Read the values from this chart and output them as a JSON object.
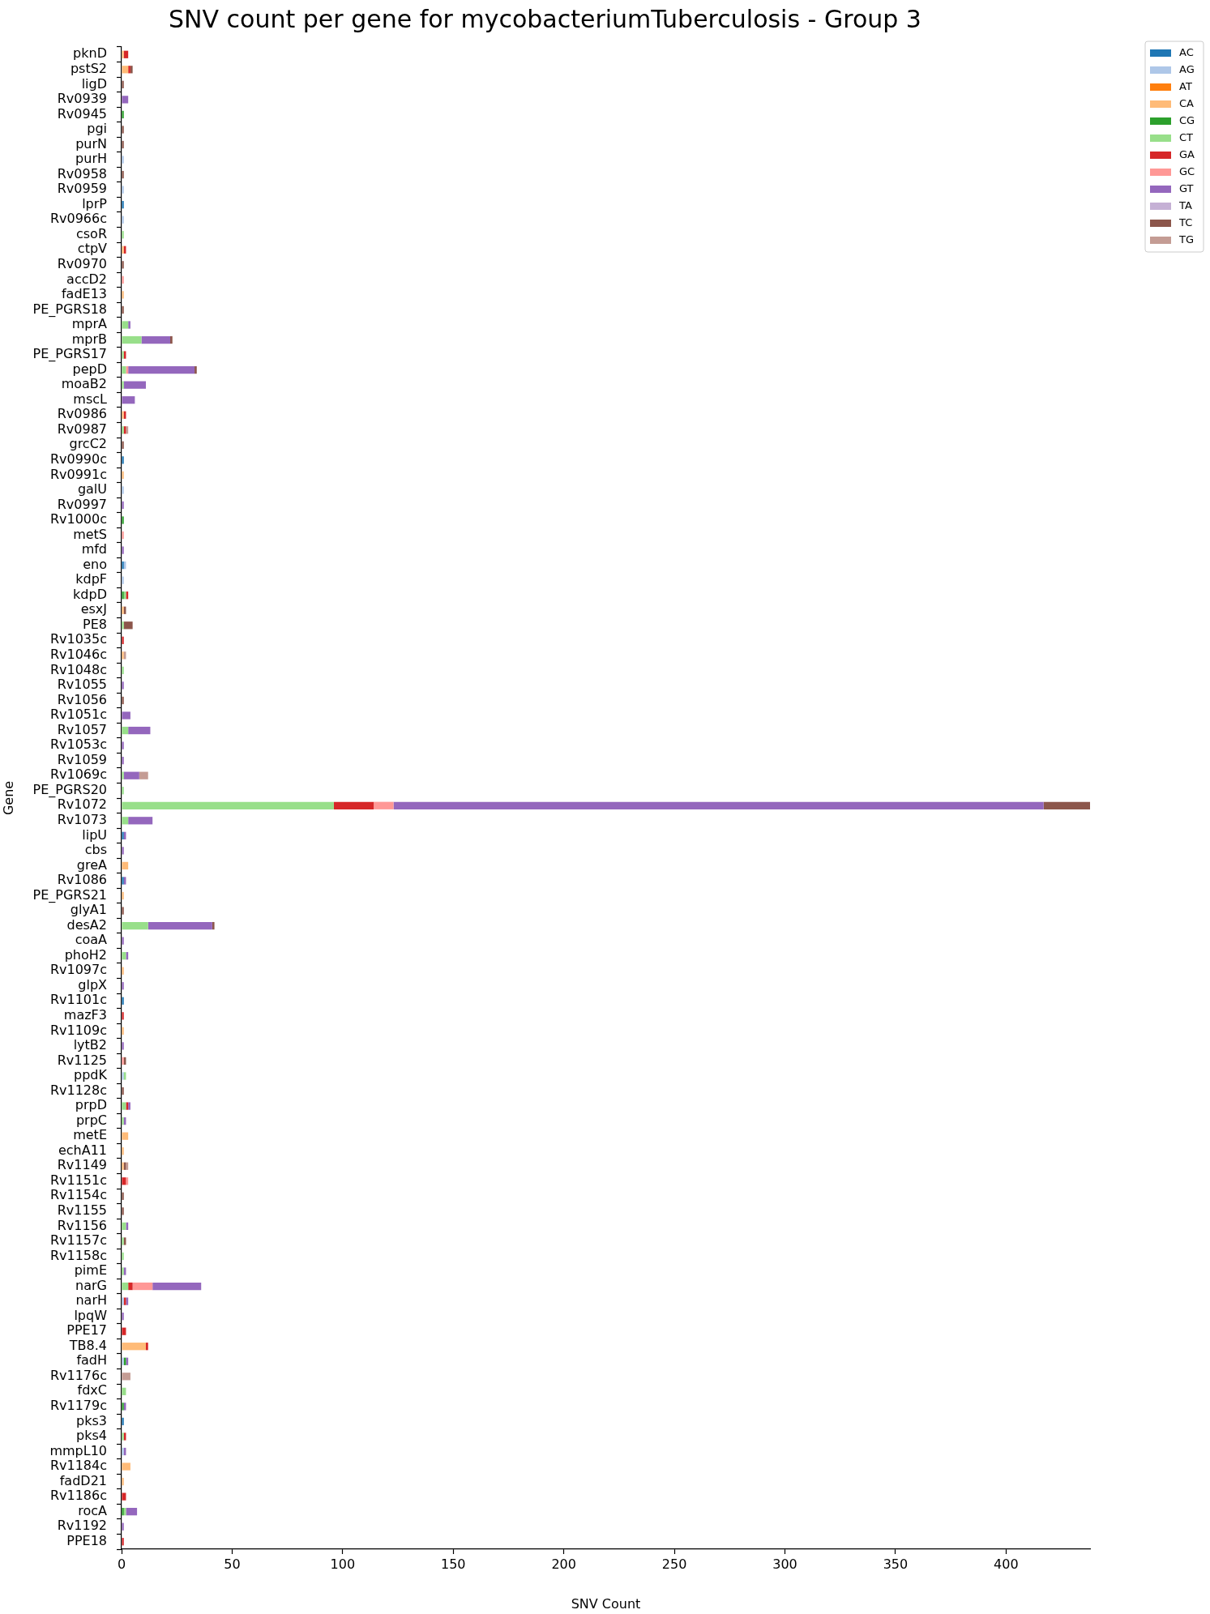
{
  "chart_data": {
    "type": "bar",
    "orientation": "horizontal",
    "stacked": true,
    "title": "SNV count per gene for mycobacteriumTuberculosis - Group 3",
    "xlabel": "SNV Count",
    "ylabel": "Gene",
    "categories": [
      "pknD",
      "pstS2",
      "ligD",
      "Rv0939",
      "Rv0945",
      "pgi",
      "purN",
      "purH",
      "Rv0958",
      "Rv0959",
      "lprP",
      "Rv0966c",
      "csoR",
      "ctpV",
      "Rv0970",
      "accD2",
      "fadE13",
      "PE_PGRS18",
      "mprA",
      "mprB",
      "PE_PGRS17",
      "pepD",
      "moaB2",
      "mscL",
      "Rv0986",
      "Rv0987",
      "grcC2",
      "Rv0990c",
      "Rv0991c",
      "galU",
      "Rv0997",
      "Rv1000c",
      "metS",
      "mfd",
      "eno",
      "kdpF",
      "kdpD",
      "esxJ",
      "PE8",
      "Rv1035c",
      "Rv1046c",
      "Rv1048c",
      "Rv1055",
      "Rv1056",
      "Rv1051c",
      "Rv1057",
      "Rv1053c",
      "Rv1059",
      "Rv1069c",
      "PE_PGRS20",
      "Rv1072",
      "Rv1073",
      "lipU",
      "cbs",
      "greA",
      "Rv1086",
      "PE_PGRS21",
      "glyA1",
      "desA2",
      "coaA",
      "phoH2",
      "Rv1097c",
      "glpX",
      "Rv1101c",
      "mazF3",
      "Rv1109c",
      "lytB2",
      "Rv1125",
      "ppdK",
      "Rv1128c",
      "prpD",
      "prpC",
      "metE",
      "echA11",
      "Rv1149",
      "Rv1151c",
      "Rv1154c",
      "Rv1155",
      "Rv1156",
      "Rv1157c",
      "Rv1158c",
      "pimE",
      "narG",
      "narH",
      "lpqW",
      "PPE17",
      "TB8.4",
      "fadH",
      "Rv1176c",
      "fdxC",
      "Rv1179c",
      "pks3",
      "pks4",
      "mmpL10",
      "Rv1184c",
      "fadD21",
      "Rv1186c",
      "rocA",
      "Rv1192",
      "PPE18"
    ],
    "series": [
      {
        "name": "AC",
        "color": "#1f77b4",
        "values": [
          null,
          null,
          null,
          null,
          null,
          null,
          null,
          null,
          null,
          null,
          1,
          null,
          null,
          null,
          null,
          null,
          null,
          null,
          null,
          null,
          null,
          null,
          null,
          null,
          null,
          null,
          null,
          1,
          null,
          null,
          null,
          null,
          null,
          null,
          1,
          null,
          null,
          null,
          null,
          null,
          null,
          null,
          null,
          null,
          null,
          null,
          null,
          null,
          null,
          null,
          null,
          null,
          1,
          null,
          null,
          1,
          null,
          null,
          null,
          null,
          null,
          null,
          null,
          1,
          null,
          null,
          null,
          null,
          null,
          null,
          null,
          null,
          null,
          null,
          null,
          null,
          null,
          null,
          null,
          null,
          null,
          null,
          null,
          null,
          null,
          null,
          null,
          null,
          null,
          null,
          null,
          1,
          null,
          null,
          null,
          null,
          null,
          null,
          null,
          null
        ]
      },
      {
        "name": "AG",
        "color": "#aec7e8",
        "values": [
          null,
          null,
          null,
          null,
          null,
          null,
          null,
          1,
          null,
          1,
          null,
          1,
          null,
          null,
          null,
          null,
          null,
          null,
          null,
          null,
          null,
          null,
          null,
          null,
          null,
          null,
          null,
          null,
          null,
          1,
          null,
          null,
          null,
          null,
          1,
          1,
          null,
          null,
          null,
          null,
          null,
          null,
          null,
          null,
          null,
          null,
          null,
          null,
          null,
          null,
          null,
          null,
          null,
          null,
          null,
          null,
          null,
          null,
          null,
          null,
          null,
          null,
          null,
          null,
          null,
          null,
          null,
          null,
          1,
          null,
          null,
          null,
          null,
          null,
          null,
          null,
          null,
          null,
          null,
          null,
          null,
          null,
          null,
          1,
          null,
          null,
          null,
          1,
          null,
          null,
          null,
          null,
          null,
          1,
          null,
          null,
          null,
          null,
          null,
          null
        ]
      },
      {
        "name": "AT",
        "color": "#ff7f0e",
        "values": [
          null,
          null,
          null,
          null,
          null,
          null,
          null,
          null,
          null,
          null,
          null,
          null,
          null,
          null,
          null,
          null,
          null,
          null,
          null,
          null,
          null,
          null,
          null,
          null,
          null,
          null,
          null,
          null,
          null,
          null,
          null,
          null,
          null,
          null,
          null,
          null,
          null,
          null,
          null,
          null,
          null,
          null,
          null,
          null,
          null,
          null,
          null,
          null,
          null,
          null,
          null,
          null,
          null,
          null,
          null,
          null,
          null,
          null,
          null,
          null,
          null,
          null,
          null,
          null,
          null,
          null,
          null,
          null,
          null,
          null,
          null,
          null,
          null,
          null,
          null,
          null,
          null,
          null,
          null,
          null,
          null,
          null,
          null,
          null,
          null,
          null,
          null,
          null,
          null,
          null,
          null,
          null,
          null,
          null,
          null,
          null,
          null,
          null,
          null,
          null
        ]
      },
      {
        "name": "CA",
        "color": "#ffbb78",
        "values": [
          1,
          3,
          null,
          null,
          null,
          null,
          null,
          null,
          null,
          null,
          null,
          null,
          null,
          1,
          null,
          null,
          1,
          null,
          null,
          null,
          null,
          null,
          null,
          null,
          1,
          null,
          null,
          null,
          1,
          null,
          null,
          null,
          null,
          null,
          null,
          null,
          null,
          1,
          null,
          null,
          1,
          null,
          null,
          null,
          null,
          null,
          null,
          null,
          null,
          null,
          null,
          null,
          null,
          null,
          3,
          null,
          1,
          null,
          null,
          null,
          null,
          1,
          null,
          null,
          null,
          1,
          null,
          null,
          null,
          null,
          null,
          null,
          3,
          1,
          1,
          null,
          null,
          null,
          null,
          null,
          null,
          null,
          null,
          null,
          null,
          null,
          11,
          null,
          null,
          null,
          null,
          null,
          null,
          null,
          4,
          1,
          null,
          null,
          null,
          null
        ]
      },
      {
        "name": "CG",
        "color": "#2ca02c",
        "values": [
          null,
          null,
          null,
          null,
          1,
          null,
          null,
          null,
          null,
          null,
          null,
          null,
          null,
          null,
          null,
          null,
          null,
          null,
          null,
          null,
          null,
          null,
          null,
          null,
          null,
          null,
          null,
          null,
          null,
          null,
          null,
          1,
          null,
          null,
          null,
          null,
          1,
          null,
          null,
          null,
          null,
          null,
          null,
          null,
          null,
          null,
          null,
          null,
          null,
          null,
          null,
          null,
          null,
          null,
          null,
          null,
          null,
          null,
          null,
          null,
          null,
          null,
          null,
          null,
          null,
          null,
          null,
          null,
          null,
          null,
          null,
          null,
          null,
          null,
          null,
          null,
          null,
          null,
          null,
          null,
          null,
          null,
          null,
          null,
          null,
          null,
          null,
          1,
          null,
          null,
          1,
          null,
          null,
          null,
          null,
          null,
          null,
          1,
          null,
          null
        ]
      },
      {
        "name": "CT",
        "color": "#98df8a",
        "values": [
          null,
          null,
          null,
          null,
          null,
          null,
          null,
          null,
          null,
          null,
          null,
          null,
          1,
          null,
          null,
          null,
          null,
          null,
          3,
          9,
          1,
          2,
          1,
          null,
          null,
          1,
          null,
          null,
          null,
          null,
          null,
          null,
          null,
          null,
          null,
          null,
          1,
          null,
          1,
          null,
          null,
          1,
          null,
          null,
          null,
          3,
          null,
          null,
          1,
          1,
          96,
          3,
          null,
          null,
          null,
          null,
          null,
          null,
          12,
          null,
          2,
          null,
          null,
          null,
          null,
          null,
          null,
          null,
          1,
          null,
          2,
          1,
          null,
          null,
          null,
          null,
          null,
          null,
          2,
          1,
          1,
          1,
          3,
          null,
          null,
          null,
          null,
          null,
          null,
          2,
          null,
          null,
          1,
          null,
          null,
          null,
          null,
          1,
          null,
          null
        ]
      },
      {
        "name": "GA",
        "color": "#d62728",
        "values": [
          2,
          1,
          null,
          null,
          null,
          null,
          null,
          null,
          null,
          null,
          null,
          null,
          null,
          1,
          null,
          null,
          null,
          null,
          null,
          null,
          1,
          null,
          null,
          null,
          1,
          1,
          null,
          null,
          null,
          null,
          null,
          null,
          null,
          null,
          null,
          null,
          1,
          null,
          null,
          1,
          null,
          null,
          null,
          null,
          null,
          null,
          null,
          null,
          null,
          null,
          18,
          null,
          null,
          null,
          null,
          null,
          null,
          null,
          null,
          null,
          null,
          null,
          null,
          null,
          1,
          null,
          null,
          null,
          null,
          null,
          1,
          null,
          null,
          null,
          null,
          2,
          null,
          null,
          null,
          null,
          null,
          null,
          2,
          1,
          null,
          2,
          1,
          null,
          null,
          null,
          null,
          null,
          1,
          null,
          null,
          null,
          2,
          null,
          null,
          1
        ]
      },
      {
        "name": "GC",
        "color": "#ff9896",
        "values": [
          null,
          null,
          null,
          null,
          null,
          null,
          null,
          null,
          null,
          null,
          null,
          null,
          null,
          null,
          null,
          1,
          null,
          null,
          null,
          null,
          null,
          1,
          null,
          null,
          null,
          null,
          null,
          null,
          null,
          null,
          null,
          null,
          1,
          null,
          null,
          null,
          null,
          null,
          null,
          null,
          null,
          null,
          null,
          null,
          null,
          null,
          null,
          null,
          null,
          null,
          9,
          null,
          null,
          null,
          null,
          null,
          null,
          null,
          null,
          null,
          null,
          null,
          null,
          null,
          null,
          null,
          null,
          1,
          null,
          null,
          null,
          null,
          null,
          null,
          null,
          1,
          null,
          null,
          null,
          null,
          null,
          null,
          9,
          null,
          null,
          null,
          null,
          null,
          null,
          null,
          null,
          null,
          null,
          null,
          null,
          null,
          null,
          null,
          null,
          null
        ]
      },
      {
        "name": "GT",
        "color": "#9467bd",
        "values": [
          null,
          null,
          null,
          3,
          null,
          null,
          null,
          null,
          null,
          null,
          null,
          null,
          null,
          null,
          null,
          null,
          null,
          null,
          1,
          13,
          null,
          30,
          10,
          6,
          null,
          null,
          null,
          null,
          null,
          null,
          1,
          null,
          null,
          1,
          null,
          null,
          null,
          null,
          null,
          null,
          null,
          null,
          1,
          null,
          4,
          10,
          1,
          1,
          7,
          null,
          294,
          11,
          1,
          1,
          null,
          1,
          null,
          null,
          29,
          1,
          1,
          null,
          1,
          null,
          null,
          null,
          1,
          null,
          null,
          null,
          1,
          1,
          null,
          null,
          null,
          null,
          null,
          null,
          1,
          null,
          null,
          1,
          22,
          1,
          1,
          null,
          null,
          1,
          null,
          null,
          1,
          null,
          null,
          1,
          null,
          null,
          null,
          5,
          1,
          null
        ]
      },
      {
        "name": "TA",
        "color": "#c5b0d5",
        "values": [
          null,
          null,
          null,
          null,
          null,
          null,
          null,
          null,
          null,
          null,
          null,
          null,
          null,
          null,
          null,
          null,
          null,
          null,
          null,
          null,
          null,
          null,
          null,
          null,
          null,
          null,
          null,
          null,
          null,
          null,
          null,
          null,
          null,
          null,
          null,
          null,
          null,
          null,
          null,
          null,
          null,
          null,
          null,
          null,
          null,
          null,
          null,
          null,
          null,
          null,
          null,
          null,
          null,
          null,
          null,
          null,
          null,
          null,
          null,
          null,
          null,
          null,
          null,
          null,
          null,
          null,
          null,
          null,
          null,
          null,
          null,
          null,
          null,
          null,
          null,
          null,
          null,
          null,
          null,
          null,
          null,
          null,
          null,
          null,
          null,
          null,
          null,
          null,
          null,
          null,
          null,
          null,
          null,
          null,
          null,
          null,
          null,
          null,
          null,
          null
        ]
      },
      {
        "name": "TC",
        "color": "#8c564b",
        "values": [
          null,
          1,
          1,
          null,
          null,
          1,
          1,
          null,
          1,
          null,
          null,
          null,
          null,
          null,
          1,
          null,
          null,
          1,
          null,
          1,
          null,
          1,
          null,
          null,
          null,
          null,
          1,
          null,
          null,
          null,
          null,
          null,
          null,
          null,
          null,
          null,
          null,
          1,
          4,
          null,
          null,
          null,
          null,
          1,
          null,
          null,
          null,
          null,
          null,
          null,
          21,
          null,
          null,
          null,
          null,
          null,
          null,
          1,
          1,
          null,
          null,
          null,
          null,
          null,
          null,
          null,
          null,
          1,
          null,
          1,
          null,
          null,
          null,
          null,
          1,
          null,
          1,
          1,
          null,
          1,
          null,
          null,
          null,
          null,
          null,
          null,
          null,
          null,
          null,
          null,
          null,
          null,
          null,
          null,
          null,
          null,
          null,
          null,
          null,
          null
        ]
      },
      {
        "name": "TG",
        "color": "#c49c94",
        "values": [
          null,
          null,
          null,
          null,
          null,
          null,
          null,
          null,
          null,
          null,
          null,
          null,
          null,
          null,
          null,
          null,
          null,
          null,
          null,
          null,
          null,
          null,
          null,
          null,
          null,
          1,
          null,
          null,
          null,
          null,
          null,
          null,
          null,
          null,
          null,
          null,
          null,
          null,
          null,
          null,
          1,
          null,
          null,
          null,
          null,
          null,
          null,
          null,
          4,
          null,
          null,
          null,
          null,
          null,
          null,
          null,
          null,
          null,
          null,
          null,
          null,
          null,
          null,
          null,
          null,
          null,
          null,
          null,
          null,
          null,
          null,
          null,
          null,
          null,
          1,
          null,
          null,
          null,
          null,
          null,
          null,
          null,
          null,
          null,
          null,
          null,
          null,
          null,
          4,
          null,
          null,
          null,
          null,
          null,
          null,
          null,
          null,
          null,
          null,
          null
        ]
      }
    ],
    "xlim": [
      0,
      438
    ],
    "xticks": [
      0,
      50,
      100,
      150,
      200,
      250,
      300,
      350,
      400
    ],
    "legend": "top right"
  }
}
